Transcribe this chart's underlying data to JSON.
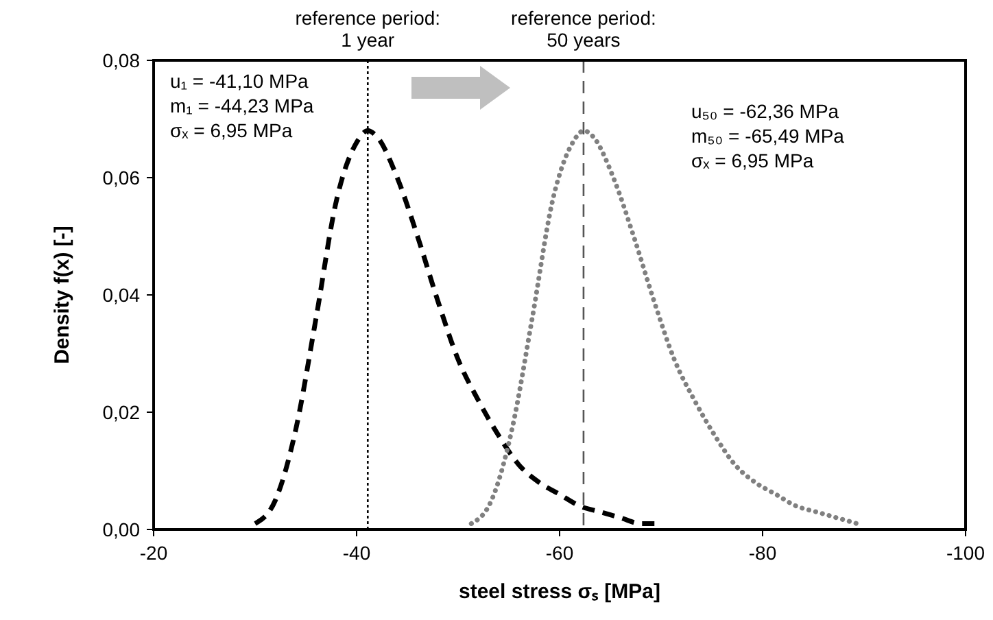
{
  "chart_data": {
    "type": "line",
    "xlabel": "steel stress σₛ [MPa]",
    "ylabel": "Density f(x) [-]",
    "xlim": [
      -20,
      -100
    ],
    "xticks": [
      -20,
      -40,
      -60,
      -80,
      -100
    ],
    "ylim": [
      0,
      0.08
    ],
    "yticks": [
      {
        "value": 0,
        "label": "0,00"
      },
      {
        "value": 0.02,
        "label": "0,02"
      },
      {
        "value": 0.04,
        "label": "0,04"
      },
      {
        "value": 0.06,
        "label": "0,06"
      },
      {
        "value": 0.08,
        "label": "0,08"
      }
    ],
    "grid": false,
    "marker": "none",
    "series": [
      {
        "color": "#000000",
        "line_style": "dashed",
        "x": [
          -30,
          -32,
          -34,
          -36,
          -38,
          -40,
          -41.1,
          -42,
          -44,
          -46,
          -48,
          -50,
          -52,
          -54,
          -56,
          -58,
          -60,
          -62,
          -64,
          -66,
          -68,
          -70
        ],
        "values": [
          0.001,
          0.005,
          0.017,
          0.036,
          0.056,
          0.066,
          0.068,
          0.067,
          0.06,
          0.05,
          0.039,
          0.029,
          0.022,
          0.016,
          0.011,
          0.008,
          0.006,
          0.004,
          0.003,
          0.002,
          0.001,
          0.001
        ]
      },
      {
        "color": "#808080",
        "line_style": "dotted",
        "x": [
          -51.3,
          -53.3,
          -55.3,
          -57.3,
          -59.3,
          -61.3,
          -62.4,
          -63.3,
          -65.3,
          -67.3,
          -69.3,
          -71.3,
          -73.3,
          -75.3,
          -77.3,
          -79.3,
          -81.3,
          -83.3,
          -85.3,
          -87.3,
          -89.3
        ],
        "values": [
          0.001,
          0.005,
          0.017,
          0.036,
          0.056,
          0.066,
          0.068,
          0.067,
          0.06,
          0.05,
          0.039,
          0.029,
          0.022,
          0.016,
          0.011,
          0.008,
          0.006,
          0.004,
          0.003,
          0.002,
          0.001
        ]
      }
    ],
    "ref_lines": [
      {
        "axis": "x",
        "value": -41.1,
        "color": "#000000",
        "line_style": "dotted"
      },
      {
        "axis": "x",
        "value": -62.36,
        "color": "#555555",
        "line_style": "dashed"
      }
    ],
    "annotations": [
      "reference period:\n1 year",
      "reference period:\n50 years",
      "u₁ = -41,10 MPa",
      "m₁ = -44,23 MPa",
      "σₓ = 6,95 MPa",
      "u₅₀ = -62,36 MPa",
      "m₅₀ = -65,49 MPa",
      "σₓ = 6,95 MPa"
    ]
  }
}
